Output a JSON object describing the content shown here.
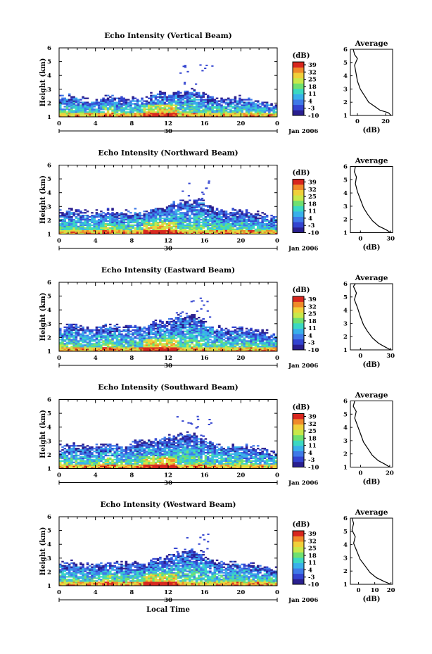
{
  "chart_data": [
    {
      "type": "heatmap",
      "title": "Echo Intensity (Vertical Beam)",
      "ylabel": "Height (km)",
      "yticks": [
        "1",
        "2",
        "3",
        "4",
        "5",
        "6"
      ],
      "ylim": [
        1,
        6
      ],
      "xticks": [
        "0",
        "4",
        "8",
        "12",
        "16",
        "20",
        "0"
      ],
      "xlim": [
        0,
        24
      ],
      "date_marker": "30",
      "date_label": "Jan 2006",
      "colorbar": {
        "unit": "(dB)",
        "ticks": [
          "39",
          "32",
          "25",
          "18",
          "11",
          "4",
          "-3",
          "-10"
        ]
      },
      "echo_top_km": [
        2.4,
        2.5,
        2.3,
        2.2,
        2.3,
        2.4,
        2.3,
        2.3,
        2.4,
        2.3,
        2.6,
        2.7,
        2.8,
        2.8,
        2.9,
        2.8,
        2.5,
        2.3,
        2.3,
        2.4,
        2.3,
        2.2,
        2.1,
        1.9
      ],
      "average": {
        "title": "Average",
        "xlabel": "(dB)",
        "xticks": [
          "0",
          "20"
        ],
        "xlim": [
          -5,
          25
        ],
        "ylim": [
          1,
          6
        ],
        "profile": [
          [
            24,
            1.0
          ],
          [
            22,
            1.2
          ],
          [
            16,
            1.4
          ],
          [
            12,
            1.7
          ],
          [
            8,
            2.0
          ],
          [
            5,
            2.5
          ],
          [
            2,
            3.0
          ],
          [
            0,
            3.6
          ],
          [
            -1,
            4.2
          ],
          [
            -2,
            4.8
          ],
          [
            0,
            5.3
          ],
          [
            -2,
            5.6
          ],
          [
            -3,
            6.0
          ]
        ]
      }
    },
    {
      "type": "heatmap",
      "title": "Echo Intensity (Northward Beam)",
      "ylabel": "Height (km)",
      "yticks": [
        "1",
        "2",
        "3",
        "4",
        "5",
        "6"
      ],
      "ylim": [
        1,
        6
      ],
      "xticks": [
        "0",
        "4",
        "8",
        "12",
        "16",
        "20",
        "0"
      ],
      "xlim": [
        0,
        24
      ],
      "date_marker": "30",
      "date_label": "Jan 2006",
      "colorbar": {
        "unit": "(dB)",
        "ticks": [
          "39",
          "32",
          "25",
          "18",
          "11",
          "4",
          "-3",
          "-10"
        ]
      },
      "echo_top_km": [
        2.6,
        2.7,
        2.6,
        2.5,
        2.6,
        2.7,
        2.6,
        2.6,
        2.7,
        2.6,
        2.9,
        3.0,
        3.2,
        3.3,
        3.4,
        3.5,
        3.0,
        2.7,
        2.6,
        2.7,
        2.6,
        2.5,
        2.4,
        2.2
      ],
      "average": {
        "title": "Average",
        "xlabel": "(dB)",
        "xticks": [
          "0",
          "30"
        ],
        "xlim": [
          -10,
          32
        ],
        "ylim": [
          1,
          6
        ],
        "profile": [
          [
            30,
            1.0
          ],
          [
            26,
            1.2
          ],
          [
            18,
            1.5
          ],
          [
            12,
            1.9
          ],
          [
            7,
            2.4
          ],
          [
            3,
            2.9
          ],
          [
            0,
            3.5
          ],
          [
            -3,
            4.1
          ],
          [
            -5,
            4.7
          ],
          [
            -4,
            5.2
          ],
          [
            -6,
            5.6
          ],
          [
            -5,
            6.0
          ]
        ]
      }
    },
    {
      "type": "heatmap",
      "title": "Echo Intensity (Eastward Beam)",
      "ylabel": "Height (km)",
      "yticks": [
        "1",
        "2",
        "3",
        "4",
        "5",
        "6"
      ],
      "ylim": [
        1,
        6
      ],
      "xticks": [
        "0",
        "4",
        "8",
        "12",
        "16",
        "20",
        "0"
      ],
      "xlim": [
        0,
        24
      ],
      "date_marker": "30",
      "date_label": "Jan 2006",
      "colorbar": {
        "unit": "(dB)",
        "ticks": [
          "39",
          "32",
          "25",
          "18",
          "11",
          "4",
          "-3",
          "-10"
        ]
      },
      "echo_top_km": [
        2.8,
        2.9,
        2.8,
        2.7,
        2.8,
        2.9,
        2.8,
        2.8,
        2.9,
        2.8,
        3.1,
        3.2,
        3.4,
        3.5,
        3.6,
        3.4,
        3.0,
        2.7,
        2.6,
        2.7,
        2.6,
        2.5,
        2.4,
        2.2
      ],
      "average": {
        "title": "Average",
        "xlabel": "(dB)",
        "xticks": [
          "0",
          "30"
        ],
        "xlim": [
          -10,
          32
        ],
        "ylim": [
          1,
          6
        ],
        "profile": [
          [
            30,
            1.0
          ],
          [
            25,
            1.2
          ],
          [
            18,
            1.5
          ],
          [
            12,
            1.9
          ],
          [
            7,
            2.4
          ],
          [
            3,
            2.9
          ],
          [
            0,
            3.5
          ],
          [
            -3,
            4.2
          ],
          [
            -6,
            4.8
          ],
          [
            -4,
            5.3
          ],
          [
            -7,
            5.8
          ],
          [
            -5,
            6.0
          ]
        ]
      }
    },
    {
      "type": "heatmap",
      "title": "Echo Intensity (Southward Beam)",
      "ylabel": "Height (km)",
      "yticks": [
        "1",
        "2",
        "3",
        "4",
        "5",
        "6"
      ],
      "ylim": [
        1,
        6
      ],
      "xticks": [
        "0",
        "4",
        "8",
        "12",
        "16",
        "20",
        "0"
      ],
      "xlim": [
        0,
        24
      ],
      "date_marker": "30",
      "date_label": "Jan 2006",
      "colorbar": {
        "unit": "(dB)",
        "ticks": [
          "39",
          "32",
          "25",
          "18",
          "11",
          "4",
          "-3",
          "-10"
        ]
      },
      "echo_top_km": [
        2.6,
        2.7,
        2.6,
        2.5,
        2.6,
        2.7,
        2.6,
        2.6,
        2.9,
        3.0,
        3.1,
        3.2,
        3.3,
        3.4,
        3.5,
        3.3,
        3.0,
        2.7,
        2.6,
        2.7,
        2.6,
        2.5,
        2.4,
        2.2
      ],
      "average": {
        "title": "Average",
        "xlabel": "(dB)",
        "xticks": [
          "0",
          "20"
        ],
        "xlim": [
          -7,
          22
        ],
        "ylim": [
          1,
          6
        ],
        "profile": [
          [
            20,
            1.0
          ],
          [
            17,
            1.2
          ],
          [
            12,
            1.5
          ],
          [
            8,
            1.9
          ],
          [
            5,
            2.4
          ],
          [
            2,
            2.9
          ],
          [
            0,
            3.5
          ],
          [
            -2,
            4.1
          ],
          [
            -4,
            4.7
          ],
          [
            -3,
            5.2
          ],
          [
            -5,
            5.6
          ],
          [
            -4,
            6.0
          ]
        ]
      }
    },
    {
      "type": "heatmap",
      "title": "Echo Intensity (Westward Beam)",
      "ylabel": "Height (km)",
      "yticks": [
        "1",
        "2",
        "3",
        "4",
        "5",
        "6"
      ],
      "ylim": [
        1,
        6
      ],
      "xticks": [
        "0",
        "4",
        "8",
        "12",
        "16",
        "20",
        "0"
      ],
      "xlim": [
        0,
        24
      ],
      "date_marker": "30",
      "date_label": "Jan 2006",
      "xlabel": "Local Time",
      "colorbar": {
        "unit": "(dB)",
        "ticks": [
          "39",
          "32",
          "25",
          "18",
          "11",
          "4",
          "-3",
          "-10"
        ]
      },
      "echo_top_km": [
        2.6,
        2.7,
        2.6,
        2.5,
        2.6,
        2.7,
        2.6,
        2.6,
        2.7,
        2.6,
        2.9,
        3.0,
        3.2,
        3.3,
        3.5,
        3.4,
        3.0,
        2.7,
        2.6,
        2.7,
        2.6,
        2.5,
        2.4,
        2.2
      ],
      "average": {
        "title": "Average",
        "xlabel": "(dB)",
        "xticks": [
          "0",
          "10",
          "20"
        ],
        "xlim": [
          -5,
          21
        ],
        "ylim": [
          1,
          6
        ],
        "profile": [
          [
            20,
            1.0
          ],
          [
            16,
            1.2
          ],
          [
            11,
            1.5
          ],
          [
            7,
            1.9
          ],
          [
            4,
            2.4
          ],
          [
            1,
            2.9
          ],
          [
            -1,
            3.5
          ],
          [
            -3,
            4.1
          ],
          [
            -2,
            4.6
          ],
          [
            -4,
            5.1
          ],
          [
            -3,
            5.6
          ],
          [
            -4,
            6.0
          ]
        ]
      }
    }
  ],
  "colors": {
    "colormap": [
      "#2a1f8f",
      "#3344d0",
      "#3f7ae8",
      "#39b0ea",
      "#3bd8c2",
      "#6fe070",
      "#c8e84a",
      "#f0d03a",
      "#f08a2a",
      "#d8261e"
    ]
  }
}
